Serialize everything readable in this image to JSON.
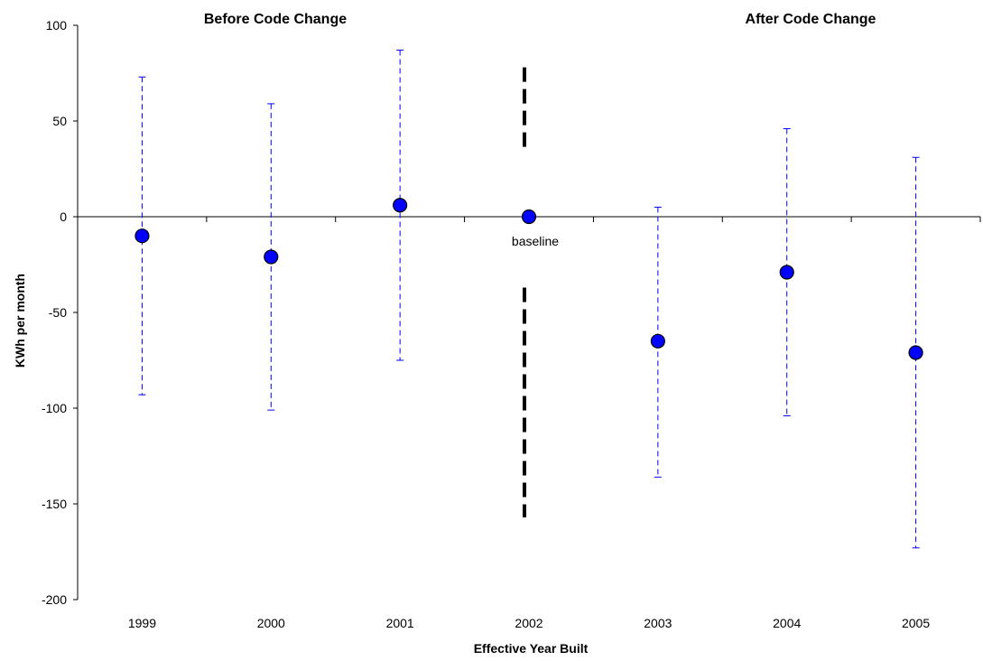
{
  "chart_data": {
    "type": "scatter",
    "title": "",
    "xlabel": "Effective Year Built",
    "ylabel": "KWh per month",
    "ylim": [
      -200,
      100
    ],
    "yticks": [
      100,
      50,
      0,
      -50,
      -100,
      -150,
      -200
    ],
    "categories": [
      "1999",
      "2000",
      "2001",
      "2002",
      "2003",
      "2004",
      "2005"
    ],
    "series": [
      {
        "values": [
          -10,
          -21,
          6,
          0,
          -65,
          -29,
          -71
        ],
        "error_low": [
          -93,
          -101,
          -75,
          0,
          -136,
          -104,
          -173
        ],
        "error_high": [
          73,
          59,
          87,
          0,
          5,
          46,
          31
        ]
      }
    ],
    "colors": {
      "marker": "#0000ff",
      "error_bar": "#0000ff",
      "divider": "#000000"
    },
    "divider": {
      "at_category": "2002",
      "segments": [
        [
          78,
          33
        ],
        [
          -37,
          -157
        ]
      ]
    },
    "annotations": {
      "before": "Before Code Change",
      "after": "After Code Change",
      "baseline": "baseline"
    }
  }
}
